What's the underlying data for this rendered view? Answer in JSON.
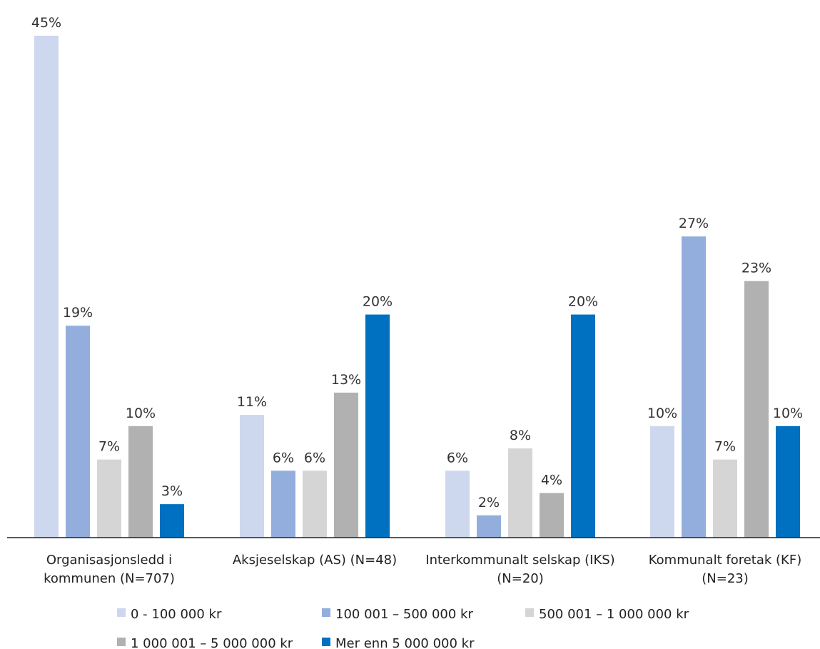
{
  "chart_data": {
    "type": "bar",
    "title": "",
    "xlabel": "",
    "ylabel": "",
    "ylim": [
      0,
      45
    ],
    "grid": false,
    "legend_position": "bottom",
    "categories": [
      [
        "Organisasjonsledd i",
        "kommunen (N=707)"
      ],
      [
        "Aksjeselskap (AS) (N=48)"
      ],
      [
        "Interkommunalt selskap (IKS)",
        "(N=20)"
      ],
      [
        "Kommunalt foretak (KF)",
        "(N=23)"
      ]
    ],
    "series": [
      {
        "name": "0 - 100 000 kr",
        "color": "#cdd8ef",
        "values": [
          45,
          11,
          6,
          10
        ],
        "labels": [
          "45%",
          "11%",
          "6%",
          "10%"
        ]
      },
      {
        "name": "100 001 – 500 000 kr",
        "color": "#93aedd",
        "values": [
          19,
          6,
          2,
          27
        ],
        "labels": [
          "19%",
          "6%",
          "2%",
          "27%"
        ]
      },
      {
        "name": "500 001 – 1 000 000 kr",
        "color": "#d5d5d5",
        "values": [
          7,
          6,
          8,
          7
        ],
        "labels": [
          "7%",
          "6%",
          "8%",
          "7%"
        ]
      },
      {
        "name": "1 000 001 – 5 000 000 kr",
        "color": "#b1b1b1",
        "values": [
          10,
          13,
          4,
          23
        ],
        "labels": [
          "10%",
          "13%",
          "4%",
          "23%"
        ]
      },
      {
        "name": "Mer enn 5 000 000 kr",
        "color": "#0070c0",
        "values": [
          3,
          20,
          20,
          10
        ],
        "labels": [
          "3%",
          "20%",
          "20%",
          "10%"
        ]
      }
    ]
  }
}
